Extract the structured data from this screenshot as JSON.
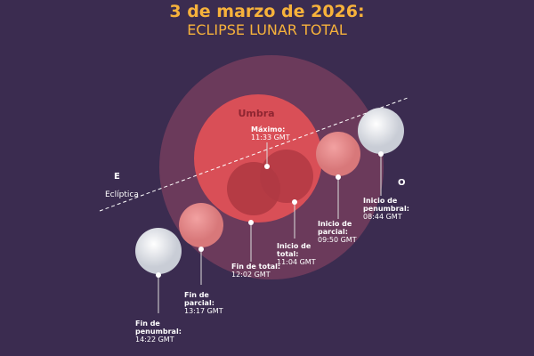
{
  "header": {
    "title": "3 de marzo de 2026:",
    "subtitle": "ECLIPSE LUNAR TOTAL"
  },
  "umbra_label": "Umbra",
  "east_label": "E",
  "west_label": "O",
  "ecliptic_label": "Eclíptica",
  "events": [
    {
      "label": [
        "Máximo:"
      ],
      "time": "11:33 GMT"
    },
    {
      "label": [
        "Inicio de",
        "penumbral:"
      ],
      "time": "08:44 GMT"
    },
    {
      "label": [
        "Inicio de",
        "parcial:"
      ],
      "time": "09:50 GMT"
    },
    {
      "label": [
        "Inicio de",
        "total:"
      ],
      "time": "11:04 GMT"
    },
    {
      "label": [
        "Fin de total:"
      ],
      "time": "12:02 GMT"
    },
    {
      "label": [
        "Fin de",
        "parcial:"
      ],
      "time": "13:17 GMT"
    },
    {
      "label": [
        "Fin de",
        "penumbral:"
      ],
      "time": "14:22 GMT"
    }
  ]
}
